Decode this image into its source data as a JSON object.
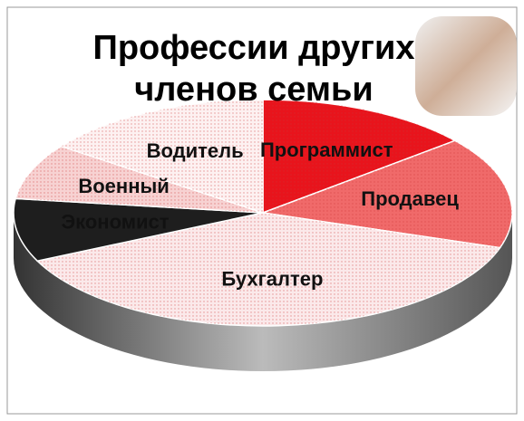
{
  "chart_data": {
    "type": "pie3d",
    "title": "Профессии других членов семьи",
    "categories": [
      "Программист",
      "Продавец",
      "Бухгалтер",
      "Экономист",
      "Военный",
      "Водитель"
    ],
    "values": [
      14,
      16,
      38,
      9,
      8,
      15
    ],
    "colors": [
      "#e8141c",
      "#f06a6a",
      "#fbe9ea",
      "#1e1e1e",
      "#f7d2d2",
      "#fdf1f1"
    ]
  }
}
